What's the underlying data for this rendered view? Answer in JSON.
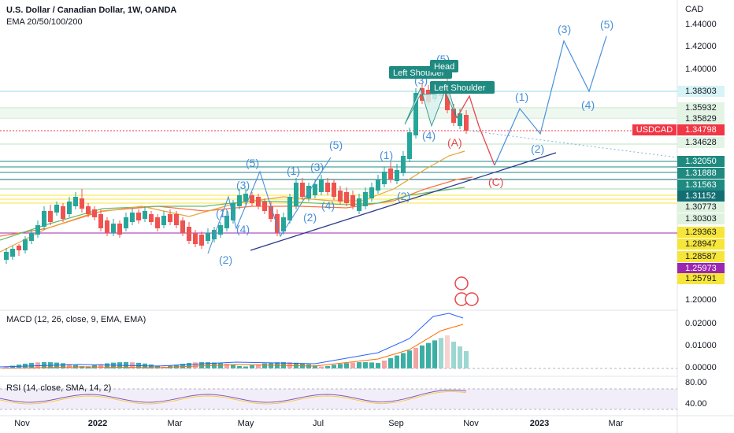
{
  "header": {
    "title": "U.S. Dollar / Canadian Dollar, 1W, OANDA",
    "indicator": "EMA 20/50/100/200"
  },
  "price_axis": {
    "currency": "CAD",
    "labels": [
      "1.44000",
      "1.42000",
      "1.40000",
      "1.20000"
    ]
  },
  "price_tags": [
    {
      "value": "1.38303",
      "bg": "#d6f3f6",
      "fg": "#131722"
    },
    {
      "value": "1.35932",
      "bg": "#e3f4e4",
      "fg": "#131722"
    },
    {
      "value": "1.35829",
      "bg": "#e3f4e4",
      "fg": "#131722"
    },
    {
      "value": "1.34798",
      "bg": "#f23645",
      "fg": "#ffffff"
    },
    {
      "value": "1.34628",
      "bg": "#e3f4e4",
      "fg": "#131722"
    },
    {
      "value": "1.32050",
      "bg": "#1f8a80",
      "fg": "#ffffff"
    },
    {
      "value": "1.31888",
      "bg": "#1f8a80",
      "fg": "#ffffff"
    },
    {
      "value": "1.31563",
      "bg": "#1f8a80",
      "fg": "#ffffff"
    },
    {
      "value": "1.31152",
      "bg": "#136e74",
      "fg": "#ffffff"
    },
    {
      "value": "1.30773",
      "bg": "#dff2e0",
      "fg": "#131722"
    },
    {
      "value": "1.30303",
      "bg": "#dff2e0",
      "fg": "#131722"
    },
    {
      "value": "1.29363",
      "bg": "#f7e63a",
      "fg": "#131722"
    },
    {
      "value": "1.28947",
      "bg": "#f7e63a",
      "fg": "#131722"
    },
    {
      "value": "1.28587",
      "bg": "#f7e63a",
      "fg": "#131722"
    },
    {
      "value": "1.25973",
      "bg": "#9c27b0",
      "fg": "#ffffff"
    },
    {
      "value": "1.25791",
      "bg": "#f7e63a",
      "fg": "#131722"
    }
  ],
  "symbol_tag": "USDCAD",
  "macd": {
    "label": "MACD (12, 26, close, 9, EMA, EMA)",
    "axis": [
      "0.02000",
      "0.01000",
      "0.00000"
    ]
  },
  "rsi": {
    "label": "RSI (14, close, SMA, 14, 2)",
    "axis": [
      "80.00",
      "40.00"
    ]
  },
  "time_axis": [
    {
      "label": "Nov",
      "bold": false
    },
    {
      "label": "2022",
      "bold": true
    },
    {
      "label": "Mar",
      "bold": false
    },
    {
      "label": "May",
      "bold": false
    },
    {
      "label": "Jul",
      "bold": false
    },
    {
      "label": "Sep",
      "bold": false
    },
    {
      "label": "Nov",
      "bold": false
    },
    {
      "label": "2023",
      "bold": true
    },
    {
      "label": "Mar",
      "bold": false
    }
  ],
  "annotations": {
    "waves_blue": [
      "(1)",
      "(2)",
      "(3)",
      "(4)",
      "(5)",
      "(1)",
      "(2)",
      "(3)",
      "(4)",
      "(5)",
      "(1)",
      "(2)",
      "(3)",
      "(4)",
      "(5)",
      "(1)",
      "(2)",
      "(3)",
      "(4)",
      "(5)"
    ],
    "waves_red": [
      "(A)",
      "(C)"
    ],
    "hs_labels": [
      "Left Shoulder",
      "Head",
      "Left Shoulder"
    ]
  },
  "colors": {
    "up": "#26a69a",
    "down": "#ef5350",
    "wave": "#4a90d9",
    "trend": "#2a3a8f",
    "ema20": "#e8a33a",
    "ema50": "#8bc34a",
    "ema100": "#66bb6a",
    "ema200": "#ff7043"
  }
}
